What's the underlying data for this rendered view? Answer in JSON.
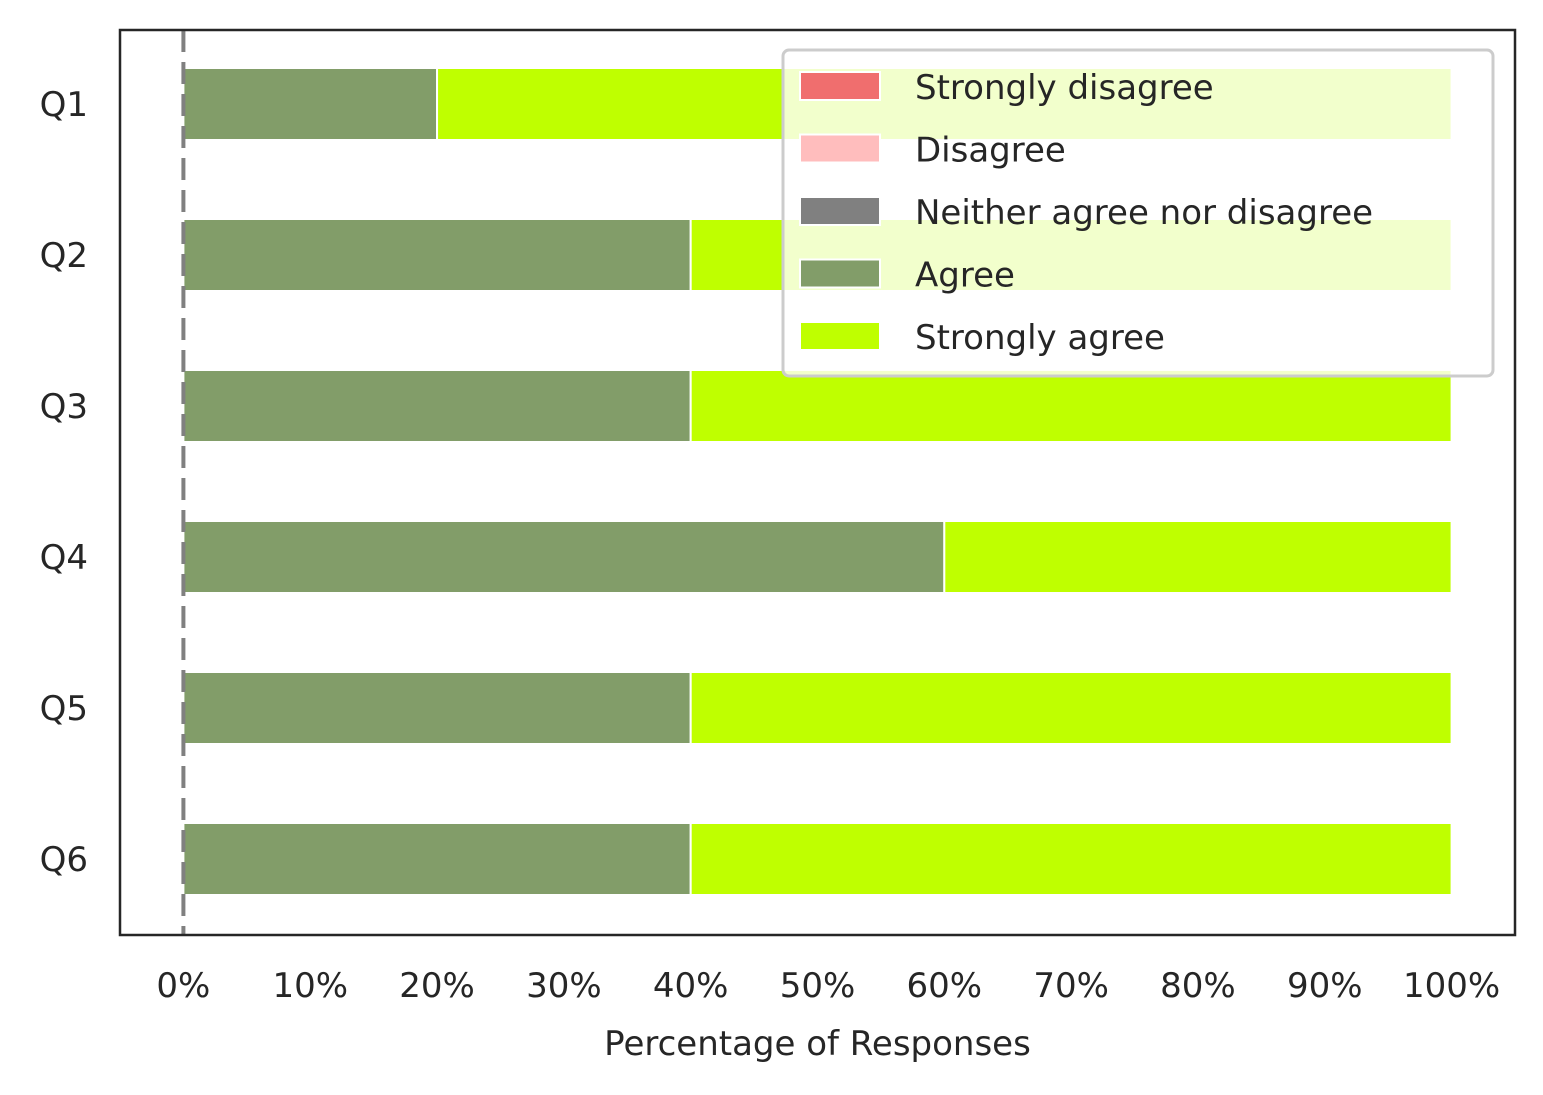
{
  "chart_data": {
    "type": "bar",
    "orientation": "horizontal",
    "stacked": true,
    "categories": [
      "Q1",
      "Q2",
      "Q3",
      "Q4",
      "Q5",
      "Q6"
    ],
    "series": [
      {
        "name": "Strongly disagree",
        "color": "#f06e6e",
        "values": [
          0,
          0,
          0,
          0,
          0,
          0
        ]
      },
      {
        "name": "Disagree",
        "color": "#ffbdbd",
        "values": [
          0,
          0,
          0,
          0,
          0,
          0
        ]
      },
      {
        "name": "Neither agree nor disagree",
        "color": "#808080",
        "values": [
          0,
          0,
          0,
          0,
          0,
          0
        ]
      },
      {
        "name": "Agree",
        "color": "#829d69",
        "values": [
          20,
          40,
          40,
          60,
          40,
          40
        ]
      },
      {
        "name": "Strongly agree",
        "color": "#bfff00",
        "values": [
          80,
          60,
          60,
          40,
          60,
          60
        ]
      }
    ],
    "xlabel": "Percentage of Responses",
    "ylabel": "",
    "xlim": [
      -5,
      105
    ],
    "xticks": [
      0,
      10,
      20,
      30,
      40,
      50,
      60,
      70,
      80,
      90,
      100
    ],
    "xtick_labels": [
      "0%",
      "10%",
      "20%",
      "30%",
      "40%",
      "50%",
      "60%",
      "70%",
      "80%",
      "90%",
      "100%"
    ],
    "reference_line": {
      "x": 0,
      "style": "dashed",
      "color": "#808080"
    },
    "legend_position": "top-right",
    "grid": false
  }
}
